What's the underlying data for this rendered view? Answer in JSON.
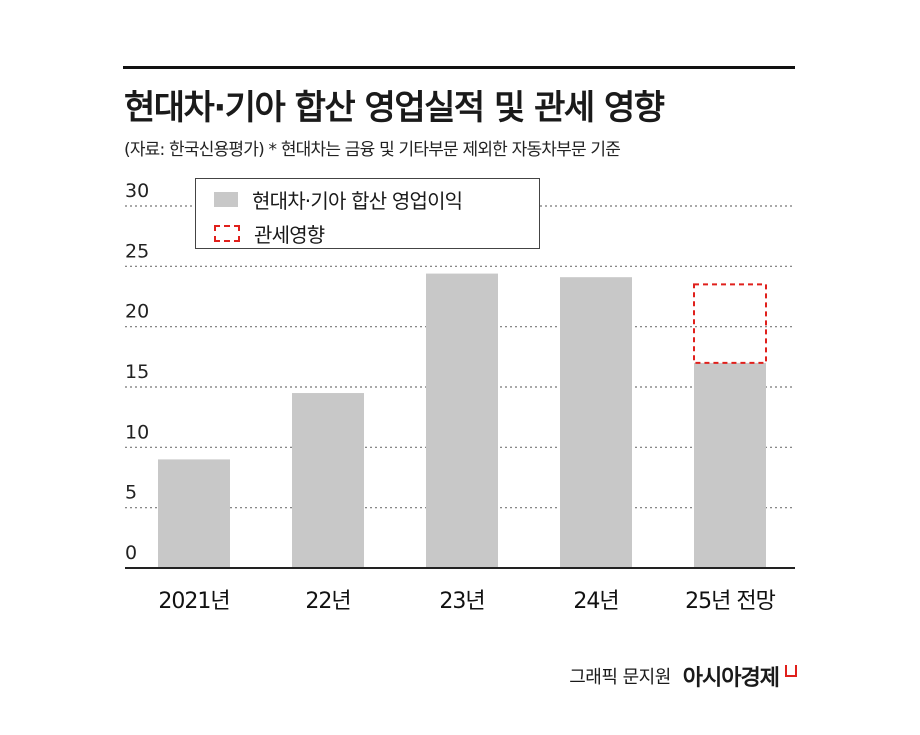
{
  "title": "현대차·기아 합산 영업실적 및 관세 영향",
  "subtitle": "(자료: 한국신용평가)  * 현대차는 금융 및 기타부문 제외한 자동차부문 기준",
  "legend": {
    "series1": "현대차·기아 합산 영업이익",
    "series2": "관세영향"
  },
  "credit": {
    "text": "그래픽 문지원",
    "brand": "아시아경제"
  },
  "colors": {
    "bar": "#c8c8c8",
    "tariff_outline": "#e0201c",
    "gridline": "#777777",
    "baseline": "#222222"
  },
  "chart_data": {
    "type": "bar",
    "categories": [
      "2021년",
      "22년",
      "23년",
      "24년",
      "25년 전망"
    ],
    "series": [
      {
        "name": "현대차·기아 합산 영업이익",
        "values": [
          9.0,
          14.5,
          24.4,
          24.1,
          17.0
        ]
      },
      {
        "name": "관세영향",
        "values": [
          null,
          null,
          null,
          null,
          6.5
        ]
      }
    ],
    "yticks": [
      0,
      5,
      10,
      15,
      20,
      25,
      30
    ],
    "ylim": [
      0,
      30
    ],
    "grid": true,
    "legend_position": "top-left"
  }
}
